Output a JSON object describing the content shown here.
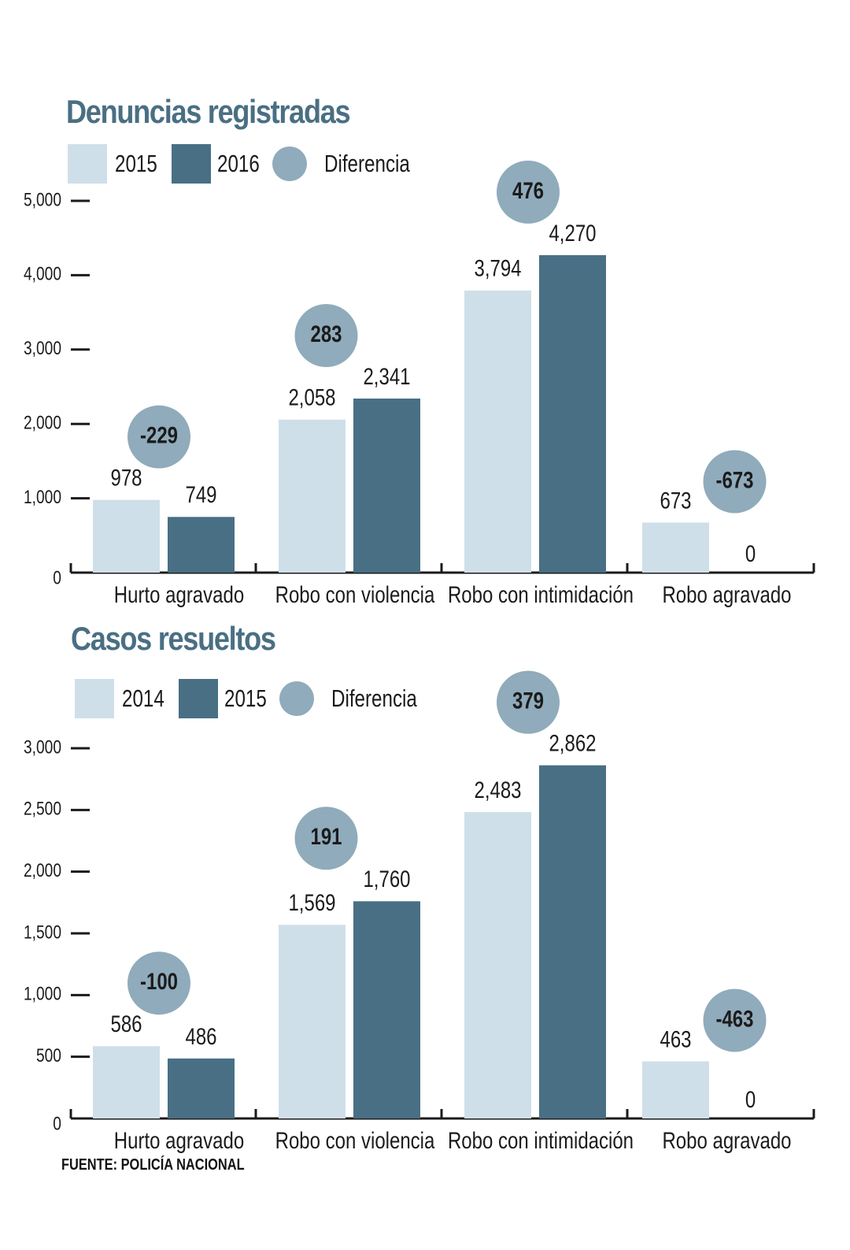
{
  "colors": {
    "light": "#cfdfe9",
    "dark": "#486f84",
    "circle": "#90abbb",
    "title": "#4a6f83",
    "text": "#1b1b1b"
  },
  "chart_data": [
    {
      "type": "bar",
      "title": "Denuncias registradas",
      "categories": [
        "Hurto agravado",
        "Robo con violencia",
        "Robo con intimidación",
        "Robo agravado"
      ],
      "series": [
        {
          "name": "2015",
          "values": [
            978,
            2058,
            3794,
            673
          ]
        },
        {
          "name": "2016",
          "values": [
            749,
            2341,
            4270,
            0
          ]
        }
      ],
      "difference_label": "Diferencia",
      "differences": [
        -229,
        283,
        476,
        -673
      ],
      "value_labels": {
        "s0": [
          "978",
          "2,058",
          "3,794",
          "673"
        ],
        "s1": [
          "749",
          "2,341",
          "4,270",
          "0"
        ],
        "diff": [
          "-229",
          "283",
          "476",
          "-673"
        ]
      },
      "yticks": [
        0,
        1000,
        2000,
        3000,
        4000,
        5000
      ],
      "ytick_labels": [
        "0",
        "1,000",
        "2,000",
        "3,000",
        "4,000",
        "5,000"
      ],
      "ylim": [
        0,
        5000
      ],
      "legend": "top-left",
      "grid": false
    },
    {
      "type": "bar",
      "title": "Casos resueltos",
      "categories": [
        "Hurto agravado",
        "Robo con violencia",
        "Robo con intimidación",
        "Robo agravado"
      ],
      "series": [
        {
          "name": "2014",
          "values": [
            586,
            1569,
            2483,
            463
          ]
        },
        {
          "name": "2015",
          "values": [
            486,
            1760,
            2862,
            0
          ]
        }
      ],
      "difference_label": "Diferencia",
      "differences": [
        -100,
        191,
        379,
        -463
      ],
      "value_labels": {
        "s0": [
          "586",
          "1,569",
          "2,483",
          "463"
        ],
        "s1": [
          "486",
          "1,760",
          "2,862",
          "0"
        ],
        "diff": [
          "-100",
          "191",
          "379",
          "-463"
        ]
      },
      "yticks": [
        0,
        500,
        1000,
        1500,
        2000,
        2500,
        3000
      ],
      "ytick_labels": [
        "0",
        "500",
        "1,000",
        "1,500",
        "2,000",
        "2,500",
        "3,000"
      ],
      "ylim": [
        0,
        3000
      ],
      "legend": "top-left",
      "grid": false
    }
  ],
  "source": "FUENTE: POLICÍA NACIONAL"
}
